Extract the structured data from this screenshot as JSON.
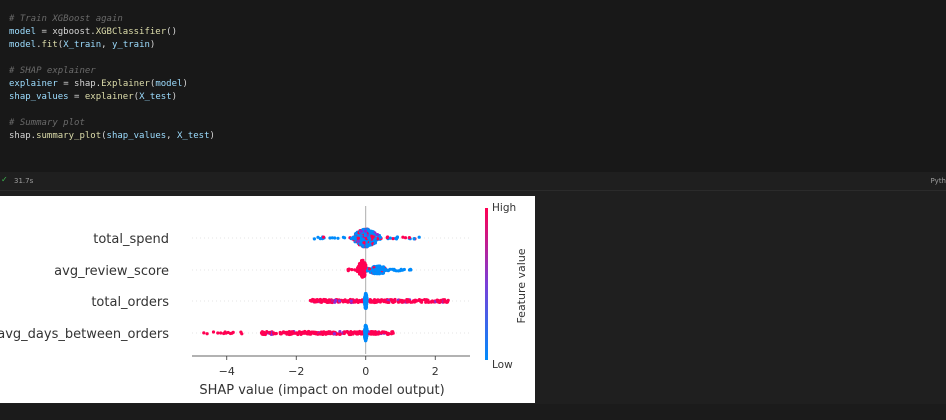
{
  "code": {
    "lines": [
      [
        {
          "c": "cm",
          "t": "# Train XGBoost again"
        }
      ],
      [
        {
          "c": "var",
          "t": "model"
        },
        {
          "c": "plain",
          "t": " = xgboost."
        },
        {
          "c": "fn",
          "t": "XGBClassifier"
        },
        {
          "c": "plain",
          "t": "()"
        }
      ],
      [
        {
          "c": "var",
          "t": "model"
        },
        {
          "c": "plain",
          "t": "."
        },
        {
          "c": "fn",
          "t": "fit"
        },
        {
          "c": "plain",
          "t": "("
        },
        {
          "c": "var",
          "t": "X_train"
        },
        {
          "c": "plain",
          "t": ", "
        },
        {
          "c": "var",
          "t": "y_train"
        },
        {
          "c": "plain",
          "t": ")"
        }
      ],
      [],
      [
        {
          "c": "cm",
          "t": "# SHAP explainer"
        }
      ],
      [
        {
          "c": "var",
          "t": "explainer"
        },
        {
          "c": "plain",
          "t": " = shap."
        },
        {
          "c": "fn",
          "t": "Explainer"
        },
        {
          "c": "plain",
          "t": "("
        },
        {
          "c": "var",
          "t": "model"
        },
        {
          "c": "plain",
          "t": ")"
        }
      ],
      [
        {
          "c": "var",
          "t": "shap_values"
        },
        {
          "c": "plain",
          "t": " = "
        },
        {
          "c": "fn",
          "t": "explainer"
        },
        {
          "c": "plain",
          "t": "("
        },
        {
          "c": "var",
          "t": "X_test"
        },
        {
          "c": "plain",
          "t": ")"
        }
      ],
      [],
      [
        {
          "c": "cm",
          "t": "# Summary plot"
        }
      ],
      [
        {
          "c": "plain",
          "t": "shap."
        },
        {
          "c": "fn",
          "t": "summary_plot"
        },
        {
          "c": "plain",
          "t": "("
        },
        {
          "c": "var",
          "t": "shap_values"
        },
        {
          "c": "plain",
          "t": ", "
        },
        {
          "c": "var",
          "t": "X_test"
        },
        {
          "c": "plain",
          "t": ")"
        }
      ]
    ]
  },
  "status": {
    "check": "✓",
    "time": "31.7s",
    "kernel": "Pyth"
  },
  "chart_data": {
    "type": "scatter",
    "features": [
      "total_spend",
      "avg_review_score",
      "total_orders",
      "avg_days_between_orders"
    ],
    "xlabel": "SHAP value (impact on model output)",
    "xticks": [
      -4,
      -2,
      0,
      2
    ],
    "xlim": [
      -5.0,
      3.0
    ],
    "colorbar": {
      "label": "Feature value",
      "high": "High",
      "low": "Low",
      "high_color": "#ff0052",
      "low_color": "#008bfb"
    },
    "distributions": [
      {
        "feature": "total_spend",
        "range": [
          -1.5,
          1.7
        ],
        "core": [
          -0.5,
          0.6
        ],
        "note": "high values mostly near zero; low values spread both sides"
      },
      {
        "feature": "avg_review_score",
        "range": [
          -0.7,
          1.3
        ],
        "core": [
          -0.3,
          0.4
        ],
        "note": "high values negative cluster; low values positive"
      },
      {
        "feature": "total_orders",
        "range": [
          -1.6,
          2.5
        ],
        "core": [
          -0.1,
          0.1
        ],
        "note": "high values spread widely; low values at zero"
      },
      {
        "feature": "avg_days_between_orders",
        "range": [
          -4.7,
          0.9
        ],
        "core": [
          -0.1,
          0.1
        ],
        "note": "high values strongly negative; low values near zero"
      }
    ]
  }
}
